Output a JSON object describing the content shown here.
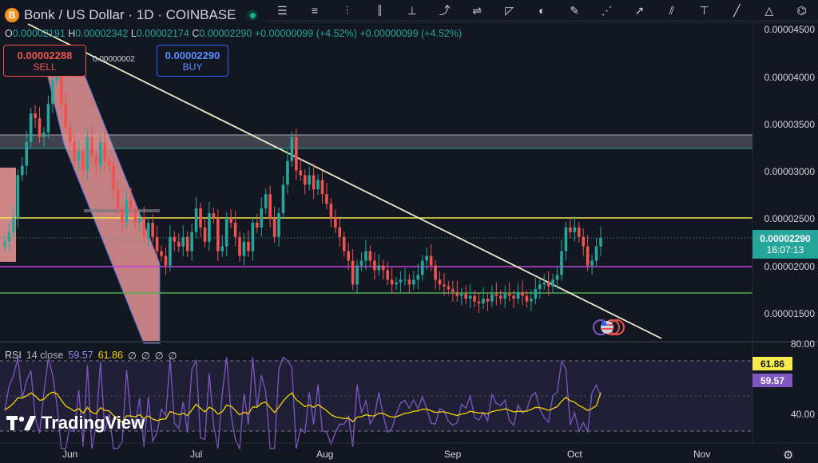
{
  "symbol": {
    "coin_letter": "B",
    "title": "Bonk / US Dollar · 1D · COINBASE"
  },
  "ohlc": {
    "o_label": "O",
    "o_value": "0.00002191",
    "h_label": "H",
    "h_value": "0.00002342",
    "l_label": "L",
    "l_value": "0.00002174",
    "c_label": "C",
    "c_value": "0.00002290",
    "change": "+0.00000099 (+4.52%)",
    "change2": "+0.00000099 (+4.52%)"
  },
  "trade": {
    "sell_price": "0.00002288",
    "sell_label": "SELL",
    "spread": "0.00000002",
    "buy_price": "0.00002290",
    "buy_label": "BUY"
  },
  "current_price": {
    "value": "0.00002290",
    "countdown": "16:07:13"
  },
  "rsi": {
    "label": "RSI",
    "params": "14 close",
    "value": "59.57",
    "ma_value": "61.86",
    "empties": [
      "∅",
      "∅",
      "∅",
      "∅"
    ],
    "axis_top": "80.00",
    "axis_bottom": "40.00"
  },
  "x_axis": [
    "Jun",
    "Jul",
    "Aug",
    "Sep",
    "Oct",
    "Nov"
  ],
  "brand": "TradingView",
  "colors": {
    "background": "#131722",
    "up": "#26a69a",
    "down": "#ef5350",
    "trendline": "#f0ecc2",
    "resistance": "#f5e94b",
    "support_purple": "#c040e0",
    "support_green": "#4caf50",
    "rsi_line": "#7e57c2",
    "rsi_ma": "#f5d300"
  },
  "toolbar_icons": [
    "cursor-lines-icon",
    "horizontal-lines-icon",
    "fib-icon",
    "candles-icon",
    "pitchfork-icon",
    "path-icon",
    "measure-icon",
    "projection-icon",
    "shapes-icon",
    "brush-icon",
    "pattern-icon",
    "arrow-icon",
    "channel-icon",
    "anchored-vwap-icon",
    "extended-line-icon",
    "xabcd-icon",
    "elliott-icon"
  ],
  "chart_data": {
    "type": "candlestick",
    "price_axis": {
      "ticks": [
        "0.00004500",
        "0.00004000",
        "0.00003500",
        "0.00003000",
        "0.00002500",
        "0.00002000",
        "0.00001500"
      ],
      "range": [
        1.19e-05,
        4.69e-05
      ]
    },
    "x_categories": [
      "Jun",
      "Jul",
      "Aug",
      "Sep",
      "Oct",
      "Nov"
    ],
    "close_series": [
      2.25,
      2.35,
      2.5,
      2.95,
      3.05,
      3.3,
      3.6,
      3.55,
      3.35,
      3.4,
      3.7,
      3.95,
      4.05,
      3.7,
      3.45,
      3.3,
      3.1,
      3.2,
      3.0,
      3.35,
      3.15,
      3.05,
      3.3,
      3.1,
      3.05,
      2.8,
      2.6,
      2.45,
      2.7,
      2.6,
      2.45,
      2.5,
      2.3,
      2.45,
      2.3,
      2.15,
      2.1,
      2.0,
      2.3,
      2.25,
      2.2,
      2.3,
      2.15,
      2.35,
      2.6,
      2.4,
      2.25,
      2.55,
      2.5,
      2.15,
      2.2,
      2.5,
      2.45,
      2.3,
      2.1,
      2.25,
      2.15,
      2.45,
      2.4,
      2.6,
      2.75,
      2.5,
      2.3,
      2.55,
      2.85,
      3.1,
      3.35,
      3.0,
      2.95,
      2.85,
      2.95,
      2.8,
      2.9,
      2.75,
      2.65,
      2.5,
      2.4,
      2.3,
      2.15,
      2.05,
      1.8,
      2.0,
      2.05,
      2.15,
      2.05,
      1.95,
      2.0,
      1.95,
      1.85,
      1.8,
      1.82,
      1.85,
      1.85,
      1.8,
      1.85,
      1.9,
      2.05,
      2.1,
      2.0,
      1.85,
      1.8,
      1.78,
      1.75,
      1.72,
      1.68,
      1.7,
      1.65,
      1.68,
      1.62,
      1.6,
      1.65,
      1.62,
      1.7,
      1.68,
      1.65,
      1.7,
      1.68,
      1.65,
      1.72,
      1.68,
      1.62,
      1.65,
      1.75,
      1.8,
      1.82,
      1.78,
      1.85,
      1.9,
      2.15,
      2.4,
      2.35,
      2.4,
      2.3,
      2.2,
      2.0,
      2.05,
      2.2,
      2.29
    ],
    "levels": {
      "resistance": 2.5e-05,
      "support_purple": 1.99e-05,
      "support_green": 1.71e-05,
      "zone": [
        3.25e-05,
        3.4e-05
      ]
    },
    "rsi_axis": [
      "80.00",
      "40.00"
    ],
    "rsi_last": 59.57,
    "rsi_ma_last": 61.86
  }
}
